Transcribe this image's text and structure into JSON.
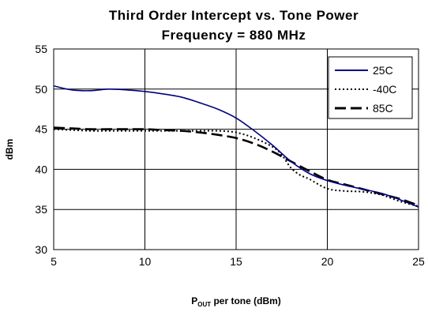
{
  "chart_data": {
    "type": "line",
    "title": "Third Order Intercept vs. Tone Power",
    "subtitle": "Frequency = 880 MHz",
    "xlabel_main": "P",
    "xlabel_sub": "OUT",
    "xlabel_rest": " per tone (dBm)",
    "ylabel": "dBm",
    "xlim": [
      5,
      25
    ],
    "ylim": [
      30,
      55
    ],
    "xticks": [
      5,
      10,
      15,
      20,
      25
    ],
    "yticks": [
      30,
      35,
      40,
      45,
      50,
      55
    ],
    "grid": true,
    "legend_position": "top-right",
    "series": [
      {
        "name": "25C",
        "color": "#000080",
        "style": "solid",
        "x": [
          5,
          6,
          7,
          8,
          9,
          10,
          11,
          12,
          13,
          14,
          15,
          16,
          17,
          18,
          19,
          20,
          21,
          22,
          23,
          24,
          25
        ],
        "y": [
          50.4,
          49.9,
          49.8,
          50.0,
          49.9,
          49.7,
          49.4,
          49.0,
          48.3,
          47.5,
          46.4,
          44.8,
          43.0,
          41.0,
          39.5,
          38.6,
          38.0,
          37.5,
          37.0,
          36.2,
          35.3
        ]
      },
      {
        "name": "-40C",
        "color": "#000000",
        "style": "dotted",
        "x": [
          5,
          6,
          7,
          8,
          9,
          10,
          11,
          12,
          13,
          14,
          15,
          16,
          17,
          17.5,
          18,
          18.5,
          19,
          20,
          21,
          22,
          23,
          24,
          25
        ],
        "y": [
          45.0,
          44.9,
          44.8,
          44.8,
          44.8,
          44.8,
          44.8,
          44.8,
          44.8,
          44.8,
          44.6,
          43.9,
          42.8,
          41.8,
          40.2,
          39.3,
          38.8,
          37.6,
          37.3,
          37.2,
          36.8,
          36.0,
          35.4
        ]
      },
      {
        "name": "85C",
        "color": "#000000",
        "style": "longdash",
        "x": [
          5,
          6,
          7,
          8,
          9,
          10,
          11,
          12,
          13,
          14,
          15,
          16,
          17,
          18,
          19,
          20,
          21,
          22,
          23,
          24,
          25
        ],
        "y": [
          45.2,
          45.1,
          45.0,
          45.0,
          45.0,
          45.0,
          44.9,
          44.8,
          44.6,
          44.3,
          43.9,
          43.2,
          42.2,
          41.0,
          39.8,
          38.7,
          38.1,
          37.5,
          36.9,
          36.3,
          35.5
        ]
      }
    ]
  }
}
